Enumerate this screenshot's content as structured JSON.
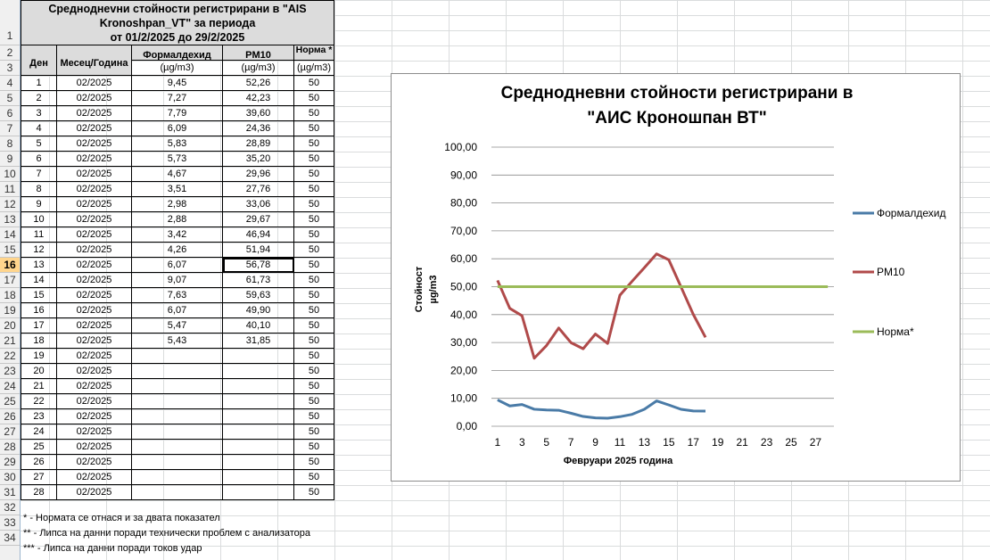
{
  "sheet": {
    "title_lines": [
      "Средноднevни стойности регистрирани в \"AIS",
      "Kronoshpan_VT\" за периода",
      "от 01/2/2025 до 29/2/2025"
    ],
    "headers": {
      "day": "Ден",
      "month": "Месец/Година",
      "formaldehyde": "Формалдехид",
      "pm10": "PM10",
      "norm": "Норма *"
    },
    "units": {
      "formaldehyde": "(µg/m3)",
      "pm10": "(µg/m3)",
      "norm": "(µg/m3)"
    },
    "row_numbers": [
      "1",
      "2",
      "3",
      "4",
      "5",
      "6",
      "7",
      "8",
      "9",
      "10",
      "11",
      "12",
      "13",
      "14",
      "15",
      "16",
      "17",
      "18",
      "19",
      "20",
      "21",
      "22",
      "23",
      "24",
      "25",
      "26",
      "27",
      "28",
      "29",
      "30",
      "31",
      "32",
      "33",
      "34"
    ],
    "selected_row": "16",
    "rows": [
      {
        "day": "1",
        "month": "02/2025",
        "f": "9,45",
        "pm": "52,26",
        "n": "50"
      },
      {
        "day": "2",
        "month": "02/2025",
        "f": "7,27",
        "pm": "42,23",
        "n": "50"
      },
      {
        "day": "3",
        "month": "02/2025",
        "f": "7,79",
        "pm": "39,60",
        "n": "50"
      },
      {
        "day": "4",
        "month": "02/2025",
        "f": "6,09",
        "pm": "24,36",
        "n": "50"
      },
      {
        "day": "5",
        "month": "02/2025",
        "f": "5,83",
        "pm": "28,89",
        "n": "50"
      },
      {
        "day": "6",
        "month": "02/2025",
        "f": "5,73",
        "pm": "35,20",
        "n": "50"
      },
      {
        "day": "7",
        "month": "02/2025",
        "f": "4,67",
        "pm": "29,96",
        "n": "50"
      },
      {
        "day": "8",
        "month": "02/2025",
        "f": "3,51",
        "pm": "27,76",
        "n": "50"
      },
      {
        "day": "9",
        "month": "02/2025",
        "f": "2,98",
        "pm": "33,06",
        "n": "50"
      },
      {
        "day": "10",
        "month": "02/2025",
        "f": "2,88",
        "pm": "29,67",
        "n": "50"
      },
      {
        "day": "11",
        "month": "02/2025",
        "f": "3,42",
        "pm": "46,94",
        "n": "50"
      },
      {
        "day": "12",
        "month": "02/2025",
        "f": "4,26",
        "pm": "51,94",
        "n": "50"
      },
      {
        "day": "13",
        "month": "02/2025",
        "f": "6,07",
        "pm": "56,78",
        "n": "50"
      },
      {
        "day": "14",
        "month": "02/2025",
        "f": "9,07",
        "pm": "61,73",
        "n": "50"
      },
      {
        "day": "15",
        "month": "02/2025",
        "f": "7,63",
        "pm": "59,63",
        "n": "50"
      },
      {
        "day": "16",
        "month": "02/2025",
        "f": "6,07",
        "pm": "49,90",
        "n": "50"
      },
      {
        "day": "17",
        "month": "02/2025",
        "f": "5,47",
        "pm": "40,10",
        "n": "50"
      },
      {
        "day": "18",
        "month": "02/2025",
        "f": "5,43",
        "pm": "31,85",
        "n": "50"
      },
      {
        "day": "19",
        "month": "02/2025",
        "f": "",
        "pm": "",
        "n": "50"
      },
      {
        "day": "20",
        "month": "02/2025",
        "f": "",
        "pm": "",
        "n": "50"
      },
      {
        "day": "21",
        "month": "02/2025",
        "f": "",
        "pm": "",
        "n": "50"
      },
      {
        "day": "22",
        "month": "02/2025",
        "f": "",
        "pm": "",
        "n": "50"
      },
      {
        "day": "23",
        "month": "02/2025",
        "f": "",
        "pm": "",
        "n": "50"
      },
      {
        "day": "24",
        "month": "02/2025",
        "f": "",
        "pm": "",
        "n": "50"
      },
      {
        "day": "25",
        "month": "02/2025",
        "f": "",
        "pm": "",
        "n": "50"
      },
      {
        "day": "26",
        "month": "02/2025",
        "f": "",
        "pm": "",
        "n": "50"
      },
      {
        "day": "27",
        "month": "02/2025",
        "f": "",
        "pm": "",
        "n": "50"
      },
      {
        "day": "28",
        "month": "02/2025",
        "f": "",
        "pm": "",
        "n": "50"
      }
    ],
    "active_cell": {
      "row_index": 12,
      "column": "pm"
    },
    "notes": [
      "* - Нормата се отнася и за двата показател",
      "** - Липса на данни поради технически проблем с анализатора",
      "*** - Липса на данни поради токов удар"
    ]
  },
  "chart_data": {
    "type": "line",
    "title_lines": [
      "Среднодневни стойности регистрирани в",
      "\"АИС Кроношпан ВТ\""
    ],
    "xlabel": "Февруари  2025 година",
    "ylabel_lines": [
      "Стойност",
      "µg/m3"
    ],
    "ylim": [
      0,
      100
    ],
    "y_ticks": [
      "0,00",
      "10,00",
      "20,00",
      "30,00",
      "40,00",
      "50,00",
      "60,00",
      "70,00",
      "80,00",
      "90,00",
      "100,00"
    ],
    "x_ticks": [
      "1",
      "3",
      "5",
      "7",
      "9",
      "11",
      "13",
      "15",
      "17",
      "19",
      "21",
      "23",
      "25",
      "27"
    ],
    "x_count": 28,
    "grid": "horizontal",
    "legend_position": "right",
    "series": [
      {
        "name": "Формалдехид",
        "color": "#4a7ba7",
        "values": [
          9.45,
          7.27,
          7.79,
          6.09,
          5.83,
          5.73,
          4.67,
          3.51,
          2.98,
          2.88,
          3.42,
          4.26,
          6.07,
          9.07,
          7.63,
          6.07,
          5.47,
          5.43
        ]
      },
      {
        "name": "PM10",
        "color": "#b04a4a",
        "values": [
          52.26,
          42.23,
          39.6,
          24.36,
          28.89,
          35.2,
          29.96,
          27.76,
          33.06,
          29.67,
          46.94,
          51.94,
          56.78,
          61.73,
          59.63,
          49.9,
          40.1,
          31.85
        ]
      },
      {
        "name": "Норма*",
        "color": "#9bbb59",
        "values": [
          50,
          50,
          50,
          50,
          50,
          50,
          50,
          50,
          50,
          50,
          50,
          50,
          50,
          50,
          50,
          50,
          50,
          50,
          50,
          50,
          50,
          50,
          50,
          50,
          50,
          50,
          50,
          50
        ]
      }
    ]
  }
}
